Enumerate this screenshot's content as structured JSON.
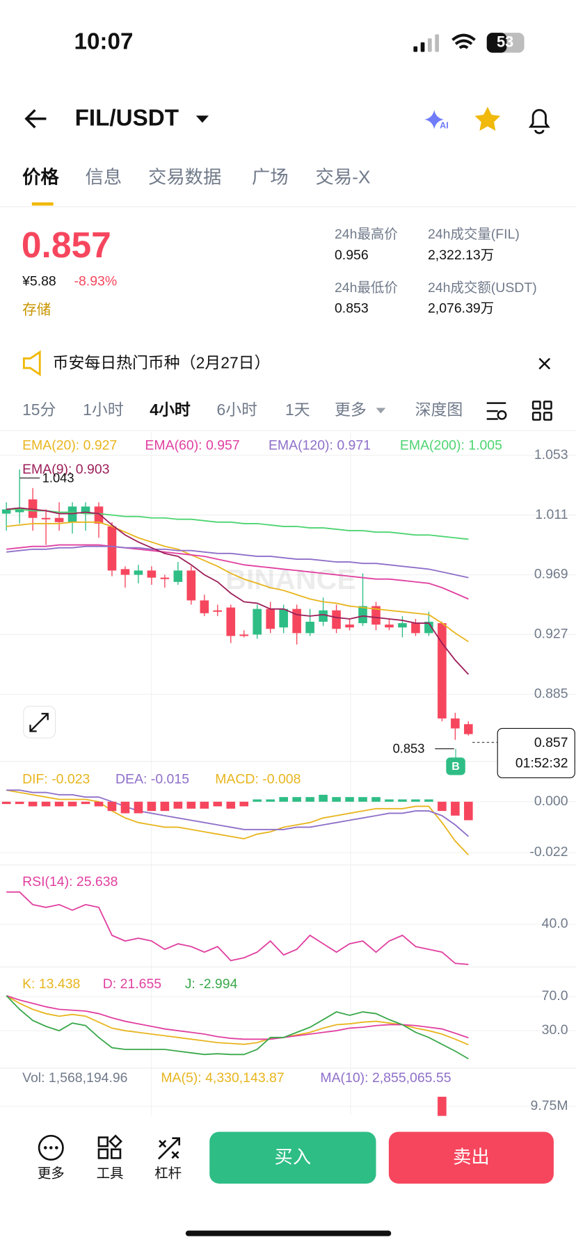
{
  "status": {
    "time": "10:07",
    "battery": "53"
  },
  "header": {
    "pair": "FIL/USDT"
  },
  "tabs": [
    "价格",
    "信息",
    "交易数据",
    "广场",
    "交易-X"
  ],
  "price": {
    "last": "0.857",
    "cny": "¥5.88",
    "change": "-8.93%",
    "tag": "存储"
  },
  "stats": [
    {
      "label": "24h最高价",
      "value": "0.956"
    },
    {
      "label": "24h成交量(FIL)",
      "value": "2,322.13万"
    },
    {
      "label": "24h最低价",
      "value": "0.853"
    },
    {
      "label": "24h成交额(USDT)",
      "value": "2,076.39万"
    }
  ],
  "announcement": "币安每日热门币种（2月27日）",
  "intervals": [
    "15分",
    "1小时",
    "4小时",
    "6小时",
    "1天",
    "更多",
    "深度图"
  ],
  "watermark": "BINANCE",
  "annotations": {
    "high": "1.043",
    "low": "0.853",
    "price": "0.857",
    "countdown": "01:52:32",
    "marker": "B"
  },
  "chart_data": [
    {
      "type": "candlestick",
      "ylim": [
        0.84,
        1.069
      ],
      "yticks": [
        1.053,
        1.011,
        0.969,
        0.927,
        0.885
      ],
      "up_color": "#2ebd85",
      "down_color": "#f6465d",
      "candles": {
        "open": [
          1.012,
          1.013,
          1.022,
          1.009,
          1.009,
          1.006,
          1.012,
          1.017,
          1.003,
          0.973,
          0.969,
          0.972,
          0.967,
          0.964,
          0.972,
          0.951,
          0.944,
          0.946,
          0.927,
          0.927,
          0.945,
          0.932,
          0.945,
          0.928,
          0.936,
          0.944,
          0.934,
          0.935,
          0.947,
          0.934,
          0.932,
          0.935,
          0.928,
          0.935,
          0.868,
          0.864
        ],
        "high": [
          1.02,
          1.043,
          1.03,
          1.015,
          1.02,
          1.02,
          1.02,
          1.02,
          1.006,
          0.975,
          0.976,
          0.975,
          0.969,
          0.978,
          0.975,
          0.955,
          0.948,
          0.948,
          0.93,
          0.948,
          0.95,
          0.948,
          0.948,
          0.945,
          0.953,
          0.948,
          0.938,
          0.97,
          0.95,
          0.938,
          0.94,
          0.938,
          0.943,
          0.936,
          0.872,
          0.866
        ],
        "low": [
          1.0,
          1.005,
          1.0,
          0.99,
          1.0,
          0.998,
          1.0,
          0.995,
          0.968,
          0.96,
          0.963,
          0.962,
          0.96,
          0.962,
          0.948,
          0.94,
          0.94,
          0.921,
          0.925,
          0.924,
          0.928,
          0.928,
          0.92,
          0.926,
          0.933,
          0.928,
          0.93,
          0.933,
          0.93,
          0.93,
          0.925,
          0.926,
          0.926,
          0.866,
          0.853,
          0.856
        ],
        "close": [
          1.015,
          1.016,
          1.009,
          1.008,
          1.006,
          1.017,
          1.017,
          1.005,
          0.972,
          0.969,
          0.972,
          0.967,
          0.966,
          0.972,
          0.951,
          0.942,
          0.943,
          0.926,
          0.926,
          0.945,
          0.931,
          0.945,
          0.928,
          0.936,
          0.944,
          0.931,
          0.932,
          0.947,
          0.934,
          0.932,
          0.935,
          0.928,
          0.936,
          0.868,
          0.861,
          0.857
        ]
      },
      "series": [
        {
          "name": "EMA(20): 0.927",
          "color": "#e8b51e",
          "values": [
            1.003,
            1.004,
            1.005,
            1.005,
            1.005,
            1.006,
            1.006,
            1.006,
            1.003,
            0.999,
            0.995,
            0.992,
            0.989,
            0.987,
            0.983,
            0.979,
            0.975,
            0.97,
            0.966,
            0.963,
            0.96,
            0.958,
            0.955,
            0.952,
            0.95,
            0.949,
            0.947,
            0.946,
            0.945,
            0.944,
            0.943,
            0.942,
            0.941,
            0.935,
            0.928,
            0.922
          ]
        },
        {
          "name": "EMA(60): 0.957",
          "color": "#e040a0",
          "values": [
            0.987,
            0.988,
            0.989,
            0.989,
            0.99,
            0.99,
            0.99,
            0.99,
            0.989,
            0.988,
            0.987,
            0.986,
            0.985,
            0.984,
            0.983,
            0.982,
            0.98,
            0.978,
            0.976,
            0.975,
            0.974,
            0.973,
            0.972,
            0.971,
            0.97,
            0.969,
            0.968,
            0.967,
            0.966,
            0.966,
            0.965,
            0.964,
            0.963,
            0.96,
            0.956,
            0.952
          ]
        },
        {
          "name": "EMA(120): 0.971",
          "color": "#8e6fc9",
          "values": [
            0.985,
            0.986,
            0.987,
            0.987,
            0.988,
            0.988,
            0.989,
            0.989,
            0.989,
            0.988,
            0.988,
            0.987,
            0.987,
            0.986,
            0.986,
            0.985,
            0.984,
            0.984,
            0.983,
            0.982,
            0.982,
            0.981,
            0.98,
            0.98,
            0.979,
            0.978,
            0.978,
            0.977,
            0.977,
            0.976,
            0.975,
            0.974,
            0.973,
            0.971,
            0.969,
            0.967
          ]
        },
        {
          "name": "EMA(200): 1.005",
          "color": "#4cd471",
          "values": [
            1.015,
            1.015,
            1.014,
            1.014,
            1.013,
            1.013,
            1.012,
            1.012,
            1.011,
            1.01,
            1.01,
            1.009,
            1.009,
            1.008,
            1.008,
            1.007,
            1.006,
            1.006,
            1.005,
            1.005,
            1.004,
            1.003,
            1.003,
            1.002,
            1.002,
            1.001,
            1.0,
            1.0,
            0.999,
            0.999,
            0.998,
            0.997,
            0.997,
            0.996,
            0.995,
            0.994
          ]
        },
        {
          "name": "EMA(9): 0.903",
          "color": "#9c1f5a",
          "values": [
            1.015,
            1.016,
            1.015,
            1.014,
            1.012,
            1.012,
            1.013,
            1.012,
            1.004,
            0.997,
            0.992,
            0.988,
            0.984,
            0.982,
            0.976,
            0.969,
            0.964,
            0.956,
            0.95,
            0.949,
            0.945,
            0.945,
            0.941,
            0.94,
            0.941,
            0.939,
            0.938,
            0.94,
            0.939,
            0.938,
            0.937,
            0.935,
            0.935,
            0.921,
            0.909,
            0.899
          ]
        }
      ]
    },
    {
      "type": "macd",
      "ylim": [
        -0.027,
        0.016
      ],
      "yticks": [
        {
          "value": 0,
          "label": "0.000"
        },
        -0.022
      ],
      "up_color": "#2ebd85",
      "down_color": "#f6465d",
      "series": [
        {
          "name": "DIF: -0.023",
          "color": "#e8b51e",
          "values": [
            0.005,
            0.004,
            0.003,
            0.002,
            0.001,
            0.001,
            0.001,
            0.0,
            -0.004,
            -0.007,
            -0.009,
            -0.01,
            -0.011,
            -0.011,
            -0.012,
            -0.013,
            -0.014,
            -0.015,
            -0.016,
            -0.014,
            -0.013,
            -0.011,
            -0.01,
            -0.009,
            -0.007,
            -0.006,
            -0.005,
            -0.004,
            -0.003,
            -0.003,
            -0.003,
            -0.002,
            -0.002,
            -0.009,
            -0.017,
            -0.023
          ]
        },
        {
          "name": "DEA: -0.015",
          "color": "#8e6fc9",
          "values": [
            0.005,
            0.005,
            0.004,
            0.004,
            0.003,
            0.003,
            0.002,
            0.002,
            0.0,
            -0.002,
            -0.004,
            -0.005,
            -0.006,
            -0.007,
            -0.008,
            -0.009,
            -0.01,
            -0.011,
            -0.012,
            -0.012,
            -0.012,
            -0.012,
            -0.011,
            -0.011,
            -0.01,
            -0.009,
            -0.008,
            -0.007,
            -0.006,
            -0.005,
            -0.005,
            -0.004,
            -0.004,
            -0.006,
            -0.01,
            -0.015
          ]
        },
        {
          "name": "MACD: -0.008",
          "color": "#e8b51e",
          "type": "bar",
          "values": [
            -0.001,
            -0.001,
            -0.002,
            -0.002,
            -0.002,
            -0.002,
            -0.001,
            -0.002,
            -0.004,
            -0.005,
            -0.005,
            -0.004,
            -0.004,
            -0.003,
            -0.003,
            -0.003,
            -0.002,
            -0.003,
            -0.002,
            0.001,
            0.001,
            0.002,
            0.002,
            0.002,
            0.003,
            0.002,
            0.002,
            0.002,
            0.002,
            0.001,
            0.001,
            0.001,
            0.001,
            -0.004,
            -0.006,
            -0.008
          ]
        }
      ]
    },
    {
      "type": "line",
      "ylim": [
        25,
        60
      ],
      "yticks": [
        {
          "value": 40,
          "label": "40.0"
        }
      ],
      "series": [
        {
          "name": "RSI(14): 25.638",
          "color": "#e040a0",
          "values": [
            51.5,
            51.5,
            47,
            46,
            47,
            45,
            47,
            46,
            36,
            34,
            35,
            34,
            31,
            33,
            32,
            30,
            32,
            27,
            28,
            30,
            34,
            29,
            31,
            36,
            33,
            30,
            33,
            34,
            30,
            34,
            36,
            32,
            31,
            30,
            26,
            25.638
          ]
        }
      ]
    },
    {
      "type": "line",
      "ylim": [
        -13,
        101
      ],
      "yticks": [
        {
          "value": 70,
          "label": "70.0"
        },
        {
          "value": 30,
          "label": "30.0"
        }
      ],
      "series": [
        {
          "name": "K: 13.438",
          "color": "#e8b51e",
          "values": [
            71,
            62,
            55,
            50,
            47,
            49,
            47,
            40,
            33,
            30,
            28,
            26,
            24,
            22,
            20,
            18,
            16,
            15,
            14,
            16,
            21,
            22,
            25,
            28,
            33,
            37,
            38,
            40,
            41,
            39,
            37,
            33,
            30,
            26,
            20,
            13.438
          ]
        },
        {
          "name": "D: 21.655",
          "color": "#e040a0",
          "values": [
            71,
            66,
            62,
            58,
            55,
            54,
            53,
            50,
            45,
            41,
            38,
            35,
            32,
            30,
            28,
            26,
            23,
            21,
            20,
            20,
            20,
            22,
            24,
            26,
            28,
            30,
            33,
            34,
            36,
            37,
            37,
            36,
            34,
            32,
            27,
            21.655
          ]
        },
        {
          "name": "J: -2.994",
          "color": "#3aa84a",
          "values": [
            71,
            55,
            42,
            35,
            30,
            39,
            36,
            22,
            10,
            8,
            8,
            8,
            8,
            6,
            4,
            2,
            3,
            2,
            2,
            8,
            22,
            22,
            28,
            34,
            43,
            52,
            48,
            52,
            50,
            43,
            37,
            28,
            22,
            14,
            6,
            -2.994
          ]
        }
      ]
    },
    {
      "type": "volume",
      "ylim": [
        0,
        16250000
      ],
      "yticks": [
        {
          "value": 9750000,
          "label": "9.75M"
        }
      ],
      "up_color": "#2ebd85",
      "down_color": "#f6465d",
      "series": [
        {
          "name": "Vol: 1,568,194.96",
          "color": "#707a8a",
          "type": "bar",
          "values": [
            null,
            null,
            null,
            null,
            null,
            null,
            null,
            null,
            null,
            null,
            null,
            null,
            null,
            null,
            null,
            null,
            null,
            null,
            null,
            null,
            null,
            null,
            null,
            null,
            null,
            null,
            null,
            null,
            null,
            null,
            null,
            null,
            null,
            11200000,
            null,
            null
          ]
        },
        {
          "name": "MA(5): 4,330,143.87",
          "color": "#e8b51e"
        },
        {
          "name": "MA(10): 2,855,065.55",
          "color": "#8e6fc9"
        }
      ]
    }
  ],
  "toolbar": [
    "更多",
    "工具",
    "杠杆"
  ],
  "actions": {
    "buy": "买入",
    "sell": "卖出"
  }
}
